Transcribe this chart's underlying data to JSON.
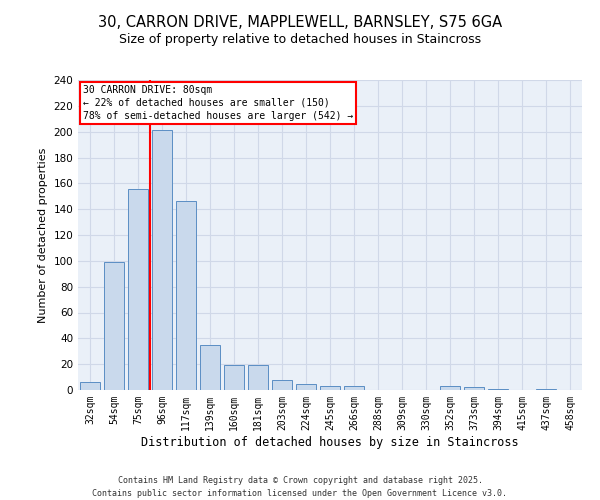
{
  "title_line1": "30, CARRON DRIVE, MAPPLEWELL, BARNSLEY, S75 6GA",
  "title_line2": "Size of property relative to detached houses in Staincross",
  "xlabel": "Distribution of detached houses by size in Staincross",
  "ylabel": "Number of detached properties",
  "bar_labels": [
    "32sqm",
    "54sqm",
    "75sqm",
    "96sqm",
    "117sqm",
    "139sqm",
    "160sqm",
    "181sqm",
    "203sqm",
    "224sqm",
    "245sqm",
    "266sqm",
    "288sqm",
    "309sqm",
    "330sqm",
    "352sqm",
    "373sqm",
    "394sqm",
    "415sqm",
    "437sqm",
    "458sqm"
  ],
  "bar_values": [
    6,
    99,
    156,
    201,
    146,
    35,
    19,
    19,
    8,
    5,
    3,
    3,
    0,
    0,
    0,
    3,
    2,
    1,
    0,
    1,
    0
  ],
  "bar_color": "#c9d9ec",
  "bar_edge_color": "#5b8ec4",
  "annotation_text": "30 CARRON DRIVE: 80sqm\n← 22% of detached houses are smaller (150)\n78% of semi-detached houses are larger (542) →",
  "red_line_x": 2.5,
  "ylim": [
    0,
    240
  ],
  "yticks": [
    0,
    20,
    40,
    60,
    80,
    100,
    120,
    140,
    160,
    180,
    200,
    220,
    240
  ],
  "grid_color": "#d0d8e8",
  "bg_color": "#eaf0f8",
  "footer_line1": "Contains HM Land Registry data © Crown copyright and database right 2025.",
  "footer_line2": "Contains public sector information licensed under the Open Government Licence v3.0."
}
